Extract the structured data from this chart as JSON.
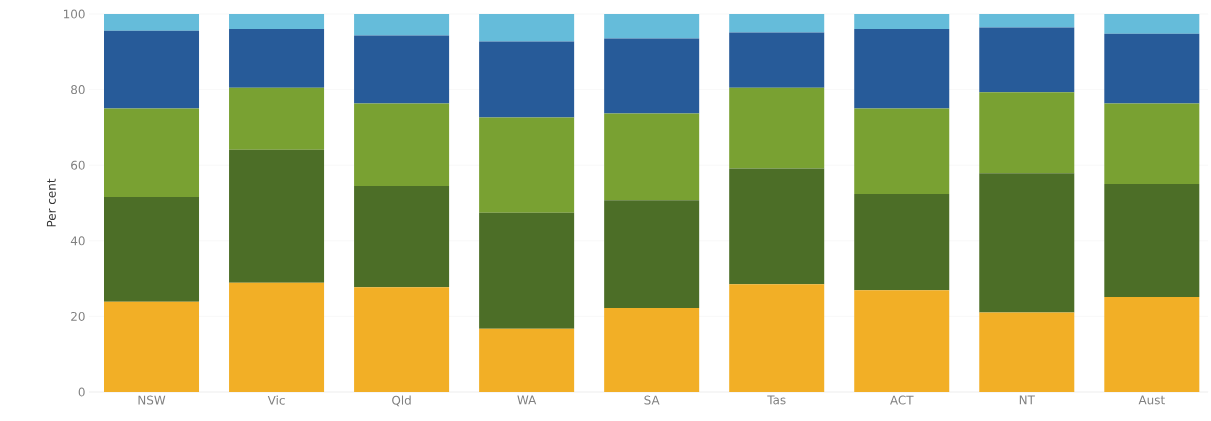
{
  "chart_data": {
    "type": "bar",
    "stacked": true,
    "ylabel": "Per cent",
    "categories": [
      "NSW",
      "Vic",
      "Qld",
      "WA",
      "SA",
      "Tas",
      "ACT",
      "NT",
      "Aust"
    ],
    "series": [
      {
        "color": "#f2af26",
        "values": [
          23.9,
          28.9,
          27.7,
          16.7,
          22.2,
          28.5,
          26.9,
          21.0,
          25.1
        ]
      },
      {
        "color": "#4c6e27",
        "values": [
          27.7,
          35.2,
          26.8,
          30.7,
          28.5,
          30.6,
          25.5,
          36.9,
          29.9
        ]
      },
      {
        "color": "#79a132",
        "values": [
          23.4,
          16.4,
          21.8,
          25.2,
          23.0,
          21.4,
          22.6,
          21.4,
          21.3
        ]
      },
      {
        "color": "#275b99",
        "values": [
          20.6,
          15.5,
          18.0,
          20.1,
          19.8,
          14.6,
          21.0,
          17.1,
          18.5
        ]
      },
      {
        "color": "#65bcda",
        "values": [
          4.4,
          4.0,
          5.7,
          7.3,
          6.5,
          4.9,
          4.0,
          3.6,
          5.2
        ]
      }
    ],
    "ylim": [
      0,
      100
    ],
    "yticks": [
      0,
      20,
      40,
      60,
      80,
      100
    ],
    "grid": "y"
  }
}
